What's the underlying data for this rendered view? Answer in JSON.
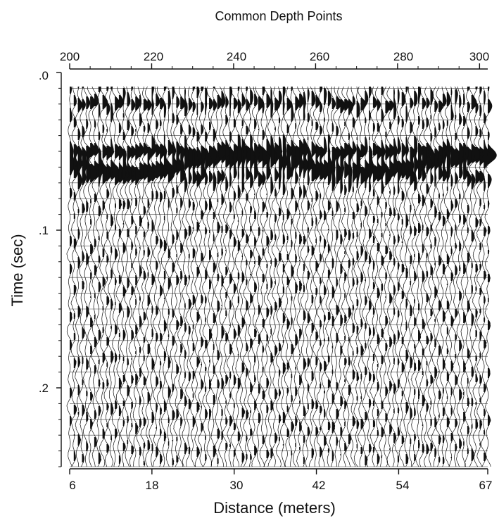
{
  "chart_data": {
    "type": "seismic wiggle-trace section",
    "top_axis": {
      "label": "Common Depth Points",
      "range": [
        200,
        302
      ],
      "ticks": [
        200,
        220,
        240,
        260,
        280,
        300
      ],
      "tick_labels": [
        "200",
        "220",
        "240",
        "260",
        "280",
        "300"
      ]
    },
    "bottom_axis": {
      "label": "Distance (meters)",
      "range": [
        6,
        67
      ],
      "ticks": [
        6,
        18,
        30,
        42,
        54,
        67
      ],
      "tick_labels": [
        "6",
        "18",
        "30",
        "42",
        "54",
        "67"
      ]
    },
    "y_axis": {
      "label": "Time (sec)",
      "range": [
        0,
        0.25
      ],
      "inverted": true,
      "ticks": [
        0,
        0.1,
        0.2
      ],
      "tick_labels": [
        ".0",
        ".1",
        ".2"
      ]
    },
    "traces": {
      "cdp_start": 200,
      "cdp_end": 302,
      "fill": "positive lobes filled black",
      "reflectors": [
        {
          "time": 0.02,
          "strength": "moderate"
        },
        {
          "time": 0.05,
          "strength": "strong"
        },
        {
          "time": 0.058,
          "strength": "strong"
        },
        {
          "time": 0.066,
          "strength": "moderate"
        }
      ]
    },
    "colors": {
      "trace": "#111111",
      "background": "#ffffff"
    }
  }
}
